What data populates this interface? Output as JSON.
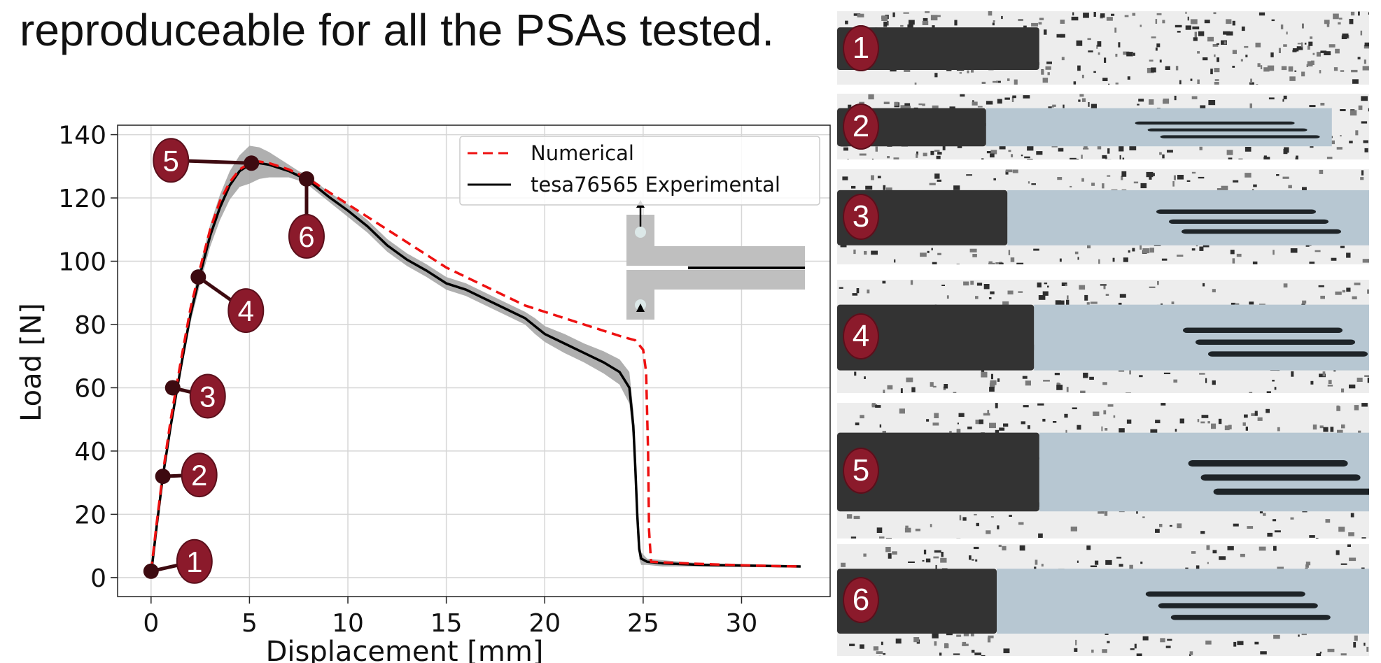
{
  "slide": {
    "title": "reproduceable for all the PSAs tested."
  },
  "colors": {
    "numerical": "#ee1111",
    "experimental": "#000000",
    "band": "#a6a6a6",
    "badge": "#8b1a2b",
    "marker": "#3d0a10"
  },
  "chart_data": {
    "type": "line",
    "title": "",
    "xlabel": "Displacement [mm]",
    "ylabel": "Load [N]",
    "xlim": [
      -1.7,
      34.5
    ],
    "ylim": [
      -6,
      143
    ],
    "xticks": [
      0,
      5,
      10,
      15,
      20,
      25,
      30
    ],
    "yticks": [
      0,
      20,
      40,
      60,
      80,
      100,
      120,
      140
    ],
    "grid": true,
    "legend_position": "top-right",
    "series": [
      {
        "name": "Numerical",
        "style": "dashed",
        "x": [
          0,
          0.3,
          0.6,
          1.0,
          1.5,
          2.0,
          2.5,
          3.0,
          3.5,
          4.0,
          4.5,
          5.0,
          5.5,
          6.0,
          6.5,
          7.0,
          7.5,
          8.0,
          9.0,
          10.0,
          11.0,
          12.0,
          13.0,
          14.0,
          15.0,
          16.0,
          17.0,
          18.0,
          19.0,
          20.0,
          21.0,
          22.0,
          23.0,
          24.0,
          24.6,
          25.0,
          25.15,
          25.25,
          25.3,
          25.4,
          26.0,
          28.0,
          30.0,
          32.0,
          33.0
        ],
        "y": [
          2,
          18,
          33,
          50,
          68,
          85,
          98,
          110,
          119,
          125,
          129,
          131,
          131.5,
          131,
          130,
          129,
          127.5,
          126,
          122,
          118,
          114,
          110,
          106,
          102,
          98,
          95,
          92,
          89,
          86,
          84,
          82,
          80,
          78,
          76,
          75,
          72,
          65,
          40,
          15,
          5,
          4.8,
          4.3,
          3.9,
          3.6,
          3.5
        ]
      },
      {
        "name": "tesa76565 Experimental",
        "style": "solid",
        "band_width": [
          0,
          0.5,
          1,
          1.5,
          2,
          2.5,
          3,
          3.5,
          4,
          4.5,
          5,
          6,
          5,
          4,
          3,
          2,
          1.5,
          1.5,
          1.5,
          2,
          2,
          2,
          2,
          2,
          2,
          2,
          2,
          2,
          2,
          2.5,
          2.5,
          3,
          3,
          3.5,
          4,
          5,
          5,
          5,
          4,
          3,
          2,
          1,
          1,
          0.5,
          0.5,
          0.3
        ],
        "x": [
          0,
          0.3,
          0.6,
          1.0,
          1.5,
          2.0,
          2.5,
          3.0,
          3.5,
          4.0,
          4.5,
          5.0,
          5.5,
          6.0,
          6.5,
          7.0,
          7.5,
          8.0,
          9.0,
          10.0,
          11.0,
          12.0,
          13.0,
          14.0,
          15.0,
          16.0,
          17.0,
          18.0,
          19.0,
          19.5,
          20.0,
          21.0,
          22.0,
          23.0,
          23.8,
          24.3,
          24.5,
          24.6,
          24.7,
          24.8,
          24.9,
          25.2,
          26.0,
          28.0,
          30.0,
          33.0
        ],
        "y": [
          1,
          17,
          32,
          48,
          66,
          83,
          96,
          108,
          117,
          124,
          128.5,
          130.5,
          131,
          130.5,
          129.5,
          128.5,
          127,
          125.5,
          120.5,
          116,
          111,
          105,
          100.5,
          97,
          93,
          91,
          88,
          85,
          82,
          79.5,
          77,
          74,
          71,
          68,
          65,
          60,
          48,
          35,
          20,
          9,
          6,
          5,
          4.5,
          4,
          3.8,
          3.5
        ]
      }
    ],
    "markers": [
      {
        "label": "1",
        "x": 0.0,
        "y": 2
      },
      {
        "label": "2",
        "x": 0.6,
        "y": 32
      },
      {
        "label": "3",
        "x": 1.1,
        "y": 60
      },
      {
        "label": "4",
        "x": 2.4,
        "y": 95
      },
      {
        "label": "5",
        "x": 5.1,
        "y": 131
      },
      {
        "label": "6",
        "x": 7.9,
        "y": 126
      }
    ]
  },
  "photos": [
    {
      "label": "1",
      "dark_fraction": 0.38,
      "delam_fraction": 0.0
    },
    {
      "label": "2",
      "dark_fraction": 0.28,
      "delam_fraction": 0.65
    },
    {
      "label": "3",
      "dark_fraction": 0.32,
      "delam_fraction": 0.68
    },
    {
      "label": "4",
      "dark_fraction": 0.37,
      "delam_fraction": 0.63
    },
    {
      "label": "5",
      "dark_fraction": 0.38,
      "delam_fraction": 0.62
    },
    {
      "label": "6",
      "dark_fraction": 0.3,
      "delam_fraction": 0.7
    }
  ]
}
